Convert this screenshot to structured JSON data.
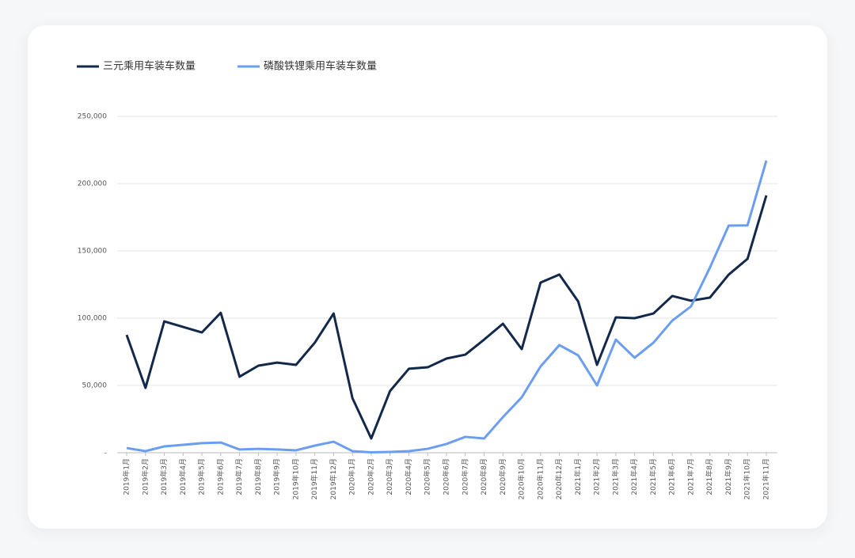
{
  "chart_data": {
    "type": "line",
    "categories": [
      "2019年1月",
      "2019年2月",
      "2019年3月",
      "2019年4月",
      "2019年5月",
      "2019年6月",
      "2019年7月",
      "2019年8月",
      "2019年9月",
      "2019年10月",
      "2019年11月",
      "2019年12月",
      "2020年1月",
      "2020年2月",
      "2020年3月",
      "2020年4月",
      "2020年5月",
      "2020年6月",
      "2020年7月",
      "2020年8月",
      "2020年9月",
      "2020年10月",
      "2020年11月",
      "2020年12月",
      "2021年1月",
      "2021年2月",
      "2021年3月",
      "2021年4月",
      "2021年5月",
      "2021年6月",
      "2021年7月",
      "2021年8月",
      "2021年9月",
      "2021年10月",
      "2021年11月"
    ],
    "series": [
      {
        "name": "三元乘用车装车数量",
        "color": "#13294b",
        "values": [
          87600,
          48200,
          97600,
          93500,
          89400,
          104000,
          56500,
          64700,
          67000,
          65300,
          81800,
          103500,
          40600,
          10600,
          45900,
          62400,
          63500,
          70000,
          72900,
          84100,
          95900,
          77000,
          126500,
          132400,
          112400,
          65300,
          100600,
          100000,
          103500,
          116500,
          113000,
          115300,
          132400,
          144100,
          191200
        ]
      },
      {
        "name": "磷酸铁锂乘用车装车数量",
        "color": "#6b9ef0",
        "values": [
          3500,
          1200,
          4700,
          5900,
          7100,
          7600,
          2400,
          2900,
          2400,
          1800,
          5300,
          8200,
          1200,
          300,
          600,
          1200,
          2900,
          6500,
          11800,
          10600,
          26500,
          41200,
          64100,
          80000,
          72400,
          50000,
          84100,
          70600,
          81800,
          98200,
          108800,
          137600,
          168800,
          169000,
          217100
        ]
      }
    ],
    "ylim": [
      0,
      250000
    ],
    "yticks": [
      {
        "value": 0,
        "label": "-"
      },
      {
        "value": 50000,
        "label": "50,000"
      },
      {
        "value": 100000,
        "label": "100,000"
      },
      {
        "value": 150000,
        "label": "150,000"
      },
      {
        "value": 200000,
        "label": "200,000"
      },
      {
        "value": 250000,
        "label": "250,000"
      }
    ],
    "grid": true,
    "legend": "top-left"
  }
}
